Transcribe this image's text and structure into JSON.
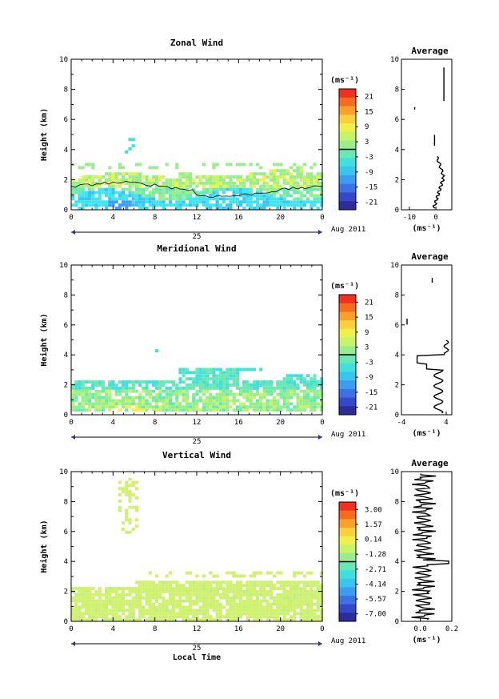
{
  "chart_data": [
    {
      "type": "heatmap",
      "title": "Zonal Wind",
      "ylabel": "Height (km)",
      "ylim": [
        0,
        10
      ],
      "y_ticks": [
        "0",
        "2",
        "4",
        "6",
        "8",
        "10"
      ],
      "x_ticks": [
        "0",
        "4",
        "8",
        "12",
        "16",
        "20",
        "0"
      ],
      "date_label": "25",
      "month_label": "Aug 2011",
      "colorbar": {
        "unit": "(ms⁻¹)",
        "tick_labels": [
          "21",
          "15",
          "9",
          "3",
          "-3",
          "-9",
          "-15",
          "-21"
        ]
      },
      "average": {
        "title": "Average",
        "x_ticks": [
          "-10",
          "0"
        ],
        "xlabel": "(ms⁻¹)",
        "xlim": [
          -13,
          6
        ]
      }
    },
    {
      "type": "heatmap",
      "title": "Meridional Wind",
      "ylabel": "Height (km)",
      "ylim": [
        0,
        10
      ],
      "y_ticks": [
        "0",
        "2",
        "4",
        "6",
        "8",
        "10"
      ],
      "x_ticks": [
        "0",
        "4",
        "8",
        "12",
        "16",
        "20",
        "0"
      ],
      "date_label": "25",
      "month_label": "Aug 2011",
      "colorbar": {
        "unit": "(ms⁻¹)",
        "tick_labels": [
          "21",
          "15",
          "9",
          "3",
          "-3",
          "-9",
          "-15",
          "-21"
        ]
      },
      "average": {
        "title": "Average",
        "x_ticks": [
          "-4",
          "4"
        ],
        "xlabel": "(ms⁻¹)",
        "xlim": [
          -4,
          5
        ]
      }
    },
    {
      "type": "heatmap",
      "title": "Vertical Wind",
      "ylabel": "Height (km)",
      "xlabel": "Local Time",
      "ylim": [
        0,
        10
      ],
      "y_ticks": [
        "0",
        "2",
        "4",
        "6",
        "8",
        "10"
      ],
      "x_ticks": [
        "0",
        "4",
        "8",
        "12",
        "16",
        "20",
        "0"
      ],
      "date_label": "25",
      "month_label": "Aug 2011",
      "colorbar": {
        "unit": "(ms⁻¹)",
        "tick_labels": [
          "3.00",
          "1.57",
          "0.14",
          "-1.28",
          "-2.71",
          "-4.14",
          "-5.57",
          "-7.00"
        ]
      },
      "average": {
        "title": "Average",
        "x_ticks": [
          "0.0",
          "0.2"
        ],
        "xlabel": "(ms⁻¹)",
        "xlim": [
          -0.12,
          0.2
        ]
      }
    }
  ]
}
